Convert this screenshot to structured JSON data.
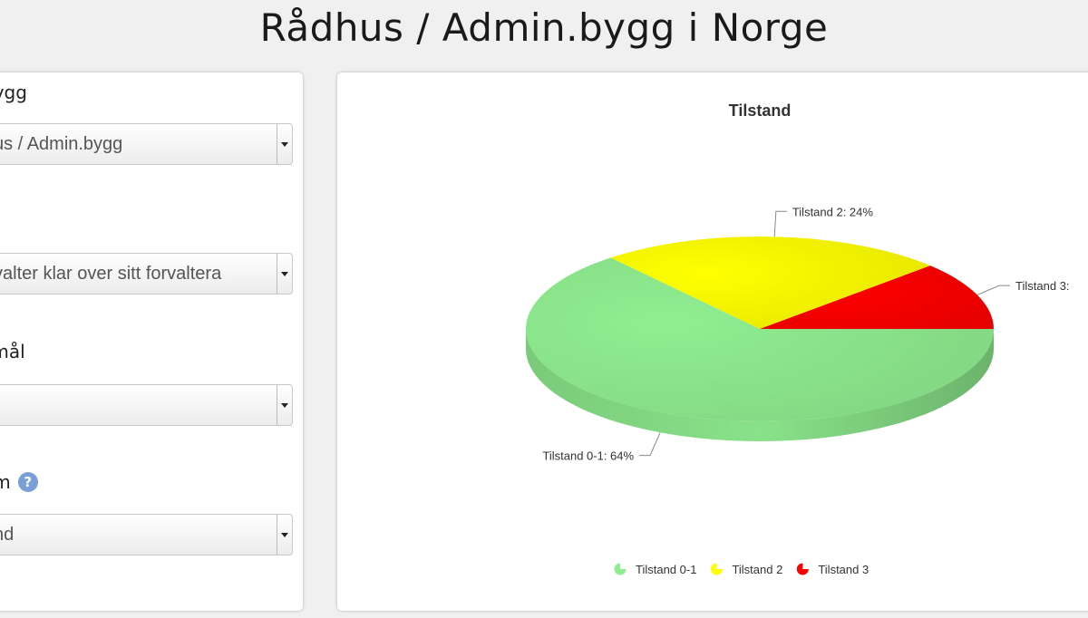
{
  "page": {
    "title": "Rådhus / Admin.bygg i Norge"
  },
  "filters": [
    {
      "label": "bygg",
      "value": "us / Admin.bygg",
      "help": ""
    },
    {
      "label": "",
      "value": "valter klar over sitt forvaltera",
      "help": ""
    },
    {
      "label": "smål",
      "value": "",
      "help": ""
    },
    {
      "label": "am",
      "value": "nd",
      "help": "?"
    }
  ],
  "chart_data": {
    "type": "pie",
    "title": "Tilstand",
    "slices": [
      {
        "name": "Tilstand 0-1",
        "value": 64,
        "label": "Tilstand 0-1: 64%",
        "color": "#90ee90"
      },
      {
        "name": "Tilstand 2",
        "value": 24,
        "label": "Tilstand 2: 24%",
        "color": "#ffff00"
      },
      {
        "name": "Tilstand 3",
        "value": 12,
        "label": "Tilstand 3:",
        "color": "#ff0000"
      }
    ],
    "legend": {
      "position": "bottom"
    }
  }
}
